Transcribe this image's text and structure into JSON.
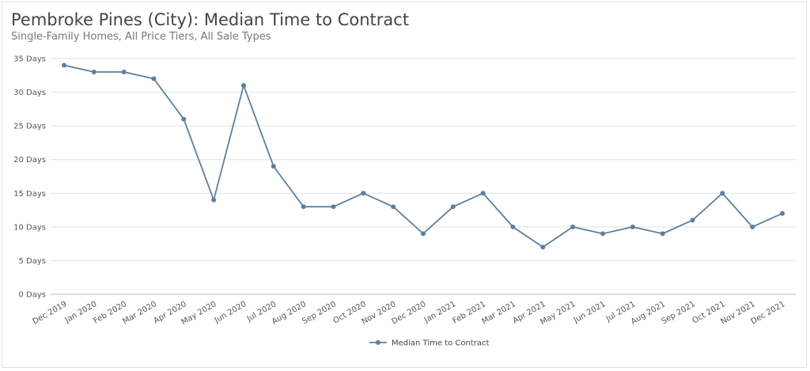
{
  "header": {
    "title": "Pembroke Pines (City): Median Time to Contract",
    "subtitle": "Single-Family Homes, All Price Tiers, All Sale Types"
  },
  "chart_data": {
    "type": "line",
    "title": "Pembroke Pines (City): Median Time to Contract",
    "subtitle": "Single-Family Homes, All Price Tiers, All Sale Types",
    "xlabel": "",
    "ylabel": "",
    "categories": [
      "Dec 2019",
      "Jan 2020",
      "Feb 2020",
      "Mar 2020",
      "Apr 2020",
      "May 2020",
      "Jun 2020",
      "Jul 2020",
      "Aug 2020",
      "Sep 2020",
      "Oct 2020",
      "Nov 2020",
      "Dec 2020",
      "Jan 2021",
      "Feb 2021",
      "Mar 2021",
      "Apr 2021",
      "May 2021",
      "Jun 2021",
      "Jul 2021",
      "Aug 2021",
      "Sep 2021",
      "Oct 2021",
      "Nov 2021",
      "Dec 2021"
    ],
    "series": [
      {
        "name": "Median Time to Contract",
        "color": "#5b7fa0",
        "values": [
          34,
          33,
          33,
          32,
          26,
          14,
          31,
          19,
          13,
          13,
          15,
          13,
          9,
          13,
          15,
          10,
          7,
          10,
          9,
          10,
          9,
          11,
          15,
          10,
          12
        ]
      }
    ],
    "ylim": [
      0,
      35
    ],
    "yticks": [
      0,
      5,
      10,
      15,
      20,
      25,
      30,
      35
    ],
    "ytick_labels": [
      "0 Days",
      "5 Days",
      "10 Days",
      "15 Days",
      "20 Days",
      "25 Days",
      "30 Days",
      "35 Days"
    ],
    "grid": true,
    "legend_position": "bottom-center"
  }
}
